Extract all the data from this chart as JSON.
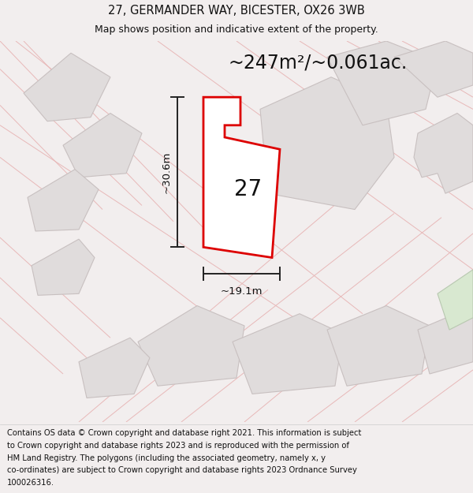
{
  "title_line1": "27, GERMANDER WAY, BICESTER, OX26 3WB",
  "title_line2": "Map shows position and indicative extent of the property.",
  "area_text": "~247m²/~0.061ac.",
  "label_27": "27",
  "dim_width": "~19.1m",
  "dim_height": "~30.6m",
  "footer_lines": [
    "Contains OS data © Crown copyright and database right 2021. This information is subject",
    "to Crown copyright and database rights 2023 and is reproduced with the permission of",
    "HM Land Registry. The polygons (including the associated geometry, namely x, y",
    "co-ordinates) are subject to Crown copyright and database rights 2023 Ordnance Survey",
    "100026316."
  ],
  "bg_color": "#f2eeee",
  "map_bg": "#f0ecec",
  "plot_outline_color": "#dd0000",
  "plot_fill_color": "#ffffff",
  "parcel_fill": "#e0dcdc",
  "parcel_stroke": "#c8c0c0",
  "road_line_color": "#e8b8b8",
  "dim_line_color": "#222222",
  "title_fontsize": 10.5,
  "subtitle_fontsize": 9,
  "area_fontsize": 17,
  "label_fontsize": 20,
  "dim_fontsize": 9.5,
  "footer_fontsize": 7.2,
  "road_linewidth": 0.7,
  "parcel_linewidth": 0.8,
  "plot_linewidth": 2.0,
  "dim_linewidth": 1.4
}
